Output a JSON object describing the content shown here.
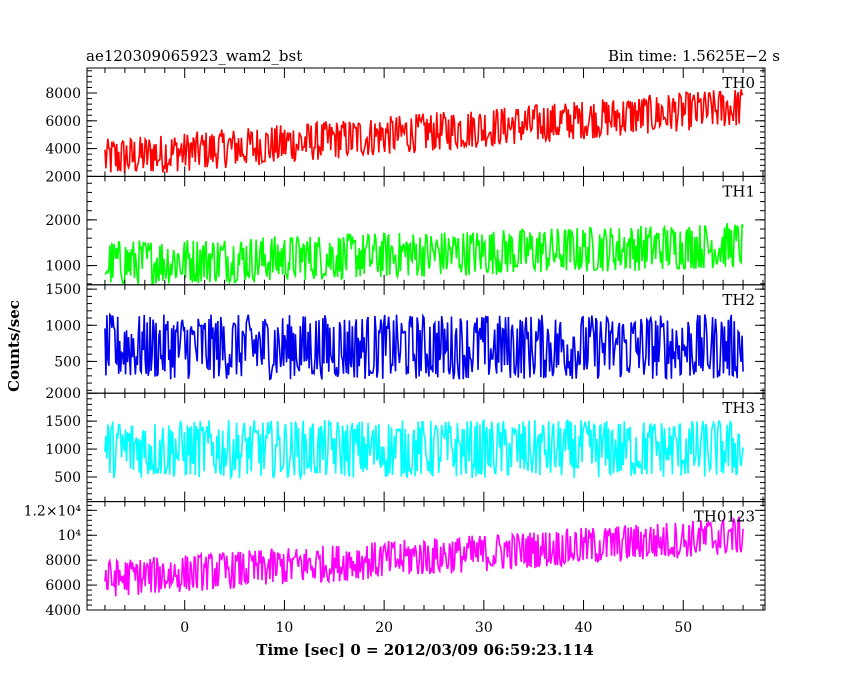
{
  "chart_data": {
    "type": "line",
    "title": "ae120309065923_wam2_bst",
    "bin_time_label": "Bin time: 1.5625E−2 s",
    "xlabel": "Time [sec] 0 = 2012/03/09 06:59:23.114",
    "ylabel": "Counts/sec",
    "xlim": [
      -9.8,
      58.2
    ],
    "x_ticks": [
      0,
      10,
      20,
      30,
      40,
      50
    ],
    "x_range_data": [
      -8.0,
      56.0
    ],
    "panels": [
      {
        "name": "TH0",
        "color": "#ff0000",
        "ylim": [
          2000,
          9800
        ],
        "y_ticks": [
          2000,
          4000,
          6000,
          8000
        ],
        "y_tick_labels": [
          "2000",
          "4000",
          "6000",
          "8000"
        ],
        "trend_start": 3300,
        "trend_end": 7000,
        "spread": 1400
      },
      {
        "name": "TH1",
        "color": "#00ff00",
        "ylim": [
          580,
          2950
        ],
        "y_ticks": [
          1000,
          2000
        ],
        "y_tick_labels": [
          "1000",
          "2000"
        ],
        "trend_start": 1050,
        "trend_end": 1450,
        "spread": 500
      },
      {
        "name": "TH2",
        "color": "#0000ee",
        "ylim": [
          60,
          1560
        ],
        "y_ticks": [
          500,
          1000,
          1500
        ],
        "y_tick_labels": [
          "500",
          "1000",
          "1500"
        ],
        "trend_start": 700,
        "trend_end": 700,
        "spread": 450
      },
      {
        "name": "TH3",
        "color": "#00ffff",
        "ylim": [
          60,
          2000
        ],
        "y_ticks": [
          500,
          1000,
          1500,
          2000
        ],
        "y_tick_labels": [
          "500",
          "1000",
          "1500",
          "2000"
        ],
        "trend_start": 1000,
        "trend_end": 1000,
        "spread": 520
      },
      {
        "name": "TH0123",
        "color": "#ff00ff",
        "ylim": [
          4000,
          12700
        ],
        "y_ticks": [
          4000,
          6000,
          8000,
          10000,
          12000
        ],
        "y_tick_labels": [
          "4000",
          "6000",
          "8000",
          "10⁴",
          "1.2×10⁴"
        ],
        "trend_start": 6500,
        "trend_end": 10000,
        "spread": 1500
      }
    ]
  }
}
